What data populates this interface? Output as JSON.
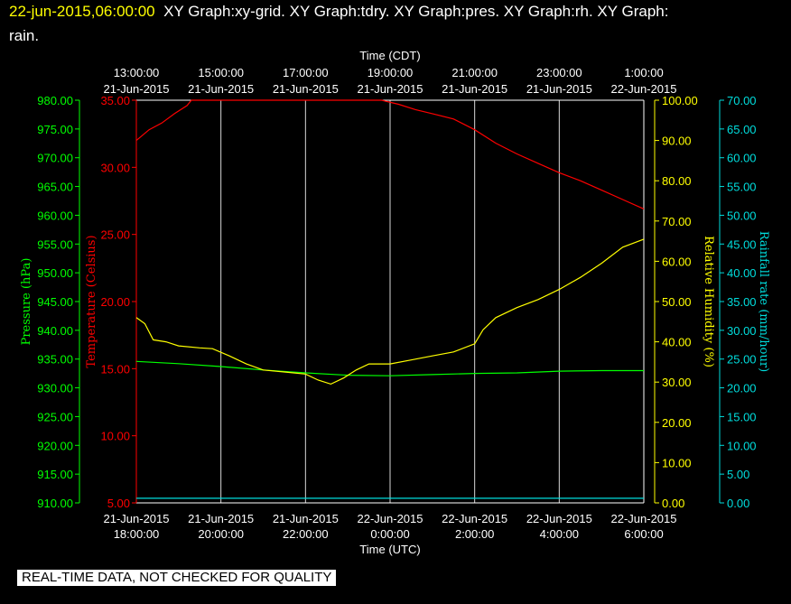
{
  "header": {
    "timestamp": "22-jun-2015,06:00:00",
    "title_rest": "XY Graph:xy-grid.  XY Graph:tdry.  XY Graph:pres.  XY Graph:rh.  XY Graph:",
    "title_line2": "rain."
  },
  "notice": "REAL-TIME DATA, NOT CHECKED FOR QUALITY",
  "colors": {
    "background": "#000000",
    "grid": "#ffffff",
    "pressure": "#00ff00",
    "temperature": "#ff0000",
    "humidity": "#ffff00",
    "rainfall": "#00dddd",
    "timestamp": "#ffff00"
  },
  "chart_data": {
    "type": "line",
    "grid": true,
    "x_top": {
      "title": "Time (CDT)",
      "ticks": [
        {
          "hour": 0,
          "time": "13:00:00",
          "date": "21-Jun-2015"
        },
        {
          "hour": 2,
          "time": "15:00:00",
          "date": "21-Jun-2015"
        },
        {
          "hour": 4,
          "time": "17:00:00",
          "date": "21-Jun-2015"
        },
        {
          "hour": 6,
          "time": "19:00:00",
          "date": "21-Jun-2015"
        },
        {
          "hour": 8,
          "time": "21:00:00",
          "date": "21-Jun-2015"
        },
        {
          "hour": 10,
          "time": "23:00:00",
          "date": "21-Jun-2015"
        },
        {
          "hour": 12,
          "time": "1:00:00",
          "date": "22-Jun-2015"
        }
      ]
    },
    "x_bottom": {
      "title": "Time (UTC)",
      "ticks": [
        {
          "hour": 0,
          "date": "21-Jun-2015",
          "time": "18:00:00"
        },
        {
          "hour": 2,
          "date": "21-Jun-2015",
          "time": "20:00:00"
        },
        {
          "hour": 4,
          "date": "21-Jun-2015",
          "time": "22:00:00"
        },
        {
          "hour": 6,
          "date": "22-Jun-2015",
          "time": "0:00:00"
        },
        {
          "hour": 8,
          "date": "22-Jun-2015",
          "time": "2:00:00"
        },
        {
          "hour": 10,
          "date": "22-Jun-2015",
          "time": "4:00:00"
        },
        {
          "hour": 12,
          "date": "22-Jun-2015",
          "time": "6:00:00"
        }
      ]
    },
    "axes": {
      "pressure": {
        "label": "Pressure (hPa)",
        "range": [
          910,
          980
        ],
        "ticks": [
          "910.00",
          "915.00",
          "920.00",
          "925.00",
          "930.00",
          "935.00",
          "940.00",
          "945.00",
          "950.00",
          "955.00",
          "960.00",
          "965.00",
          "970.00",
          "975.00",
          "980.00"
        ]
      },
      "temperature": {
        "label": "Temperature (Celsius)",
        "range": [
          5,
          35
        ],
        "ticks": [
          "5.00",
          "10.00",
          "15.00",
          "20.00",
          "25.00",
          "30.00",
          "35.00"
        ]
      },
      "humidity": {
        "label": "Relative Humidity (%)",
        "range": [
          0,
          100
        ],
        "ticks": [
          "0.00",
          "10.00",
          "20.00",
          "30.00",
          "40.00",
          "50.00",
          "60.00",
          "70.00",
          "80.00",
          "90.00",
          "100.00"
        ]
      },
      "rainfall": {
        "label": "Rainfall rate (mm/hour)",
        "range": [
          0,
          70
        ],
        "ticks": [
          "0.00",
          "5.00",
          "10.00",
          "15.00",
          "20.00",
          "25.00",
          "30.00",
          "35.00",
          "40.00",
          "45.00",
          "50.00",
          "55.00",
          "60.00",
          "65.00",
          "70.00"
        ]
      }
    },
    "series": [
      {
        "name": "Temperature",
        "axis": "temperature",
        "x": [
          0,
          0.3,
          0.6,
          0.9,
          1.2,
          1.3,
          1.5,
          5.8,
          6.2,
          6.6,
          7.0,
          7.5,
          8.0,
          8.5,
          9.0,
          9.5,
          10.0,
          10.5,
          11.0,
          11.5,
          12.0
        ],
        "y": [
          32.0,
          32.8,
          33.3,
          34.0,
          34.6,
          35.0,
          35.0,
          35.0,
          34.7,
          34.3,
          34.0,
          33.6,
          32.8,
          31.8,
          31.0,
          30.3,
          29.6,
          29.0,
          28.3,
          27.6,
          26.9
        ]
      },
      {
        "name": "Pressure",
        "axis": "pressure",
        "x": [
          0,
          1,
          2,
          3,
          4,
          5,
          6,
          7,
          8,
          9,
          10,
          11,
          12
        ],
        "y": [
          934.6,
          934.2,
          933.7,
          933.1,
          932.6,
          932.2,
          932.1,
          932.3,
          932.5,
          932.6,
          932.9,
          933.0,
          933.0
        ]
      },
      {
        "name": "Relative Humidity",
        "axis": "humidity",
        "x": [
          0,
          0.2,
          0.4,
          0.7,
          1.0,
          1.5,
          1.8,
          2.2,
          2.6,
          3.0,
          3.5,
          4.0,
          4.3,
          4.6,
          4.9,
          5.2,
          5.5,
          6.0,
          6.5,
          7.0,
          7.5,
          8.0,
          8.2,
          8.5,
          9.0,
          9.5,
          10.0,
          10.5,
          11.0,
          11.5,
          12.0
        ],
        "y": [
          46.0,
          44.5,
          40.5,
          40.0,
          39.0,
          38.5,
          38.3,
          36.5,
          34.5,
          33.0,
          32.5,
          32.0,
          30.5,
          29.5,
          31.0,
          33.0,
          34.5,
          34.5,
          35.5,
          36.5,
          37.5,
          39.5,
          43.0,
          46.0,
          48.5,
          50.5,
          53.0,
          56.0,
          59.5,
          63.5,
          65.5
        ]
      },
      {
        "name": "Rainfall rate",
        "axis": "rainfall",
        "x": [
          0,
          12
        ],
        "y": [
          0.8,
          0.8
        ]
      }
    ]
  }
}
